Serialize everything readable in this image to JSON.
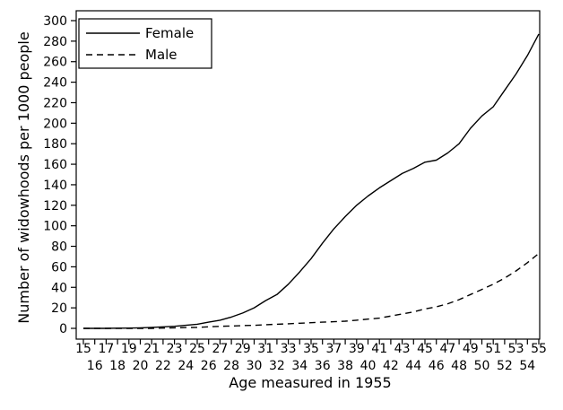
{
  "chart_data": {
    "type": "line",
    "title": "",
    "xlabel": "Age measured in 1955",
    "ylabel": "Number of widowhoods per 1000 people",
    "xlim": [
      15,
      55
    ],
    "ylim": [
      0,
      300
    ],
    "y_ticks": [
      0,
      20,
      40,
      60,
      80,
      100,
      120,
      140,
      160,
      180,
      200,
      220,
      240,
      260,
      280,
      300
    ],
    "x_ticks_top_row": [
      15,
      17,
      19,
      21,
      23,
      25,
      27,
      29,
      31,
      33,
      35,
      37,
      39,
      41,
      43,
      45,
      47,
      49,
      51,
      53,
      55
    ],
    "x_ticks_bottom_row": [
      16,
      18,
      20,
      22,
      24,
      26,
      28,
      30,
      32,
      34,
      36,
      38,
      40,
      42,
      44,
      46,
      48,
      50,
      52,
      54
    ],
    "grid": false,
    "legend_position": "top-left",
    "x": [
      15,
      16,
      17,
      18,
      19,
      20,
      21,
      22,
      23,
      24,
      25,
      26,
      27,
      28,
      29,
      30,
      31,
      32,
      33,
      34,
      35,
      36,
      37,
      38,
      39,
      40,
      41,
      42,
      43,
      44,
      45,
      46,
      47,
      48,
      49,
      50,
      51,
      52,
      53,
      54,
      55
    ],
    "series": [
      {
        "name": "Female",
        "line_style": "solid",
        "color": "#000000",
        "values": [
          0,
          0,
          0,
          0.2,
          0.3,
          0.5,
          1,
          1.5,
          2,
          3,
          4,
          6,
          8,
          11,
          15,
          20,
          27,
          33,
          43,
          55,
          68,
          83,
          97,
          109,
          120,
          129,
          137,
          144,
          151,
          156,
          162,
          164,
          171,
          180,
          195,
          207,
          216,
          232,
          248,
          266,
          287
        ]
      },
      {
        "name": "Male",
        "line_style": "dashed",
        "color": "#000000",
        "values": [
          0,
          0,
          0,
          0,
          0,
          0,
          0,
          0.3,
          0.5,
          0.8,
          1,
          1.5,
          2,
          2.3,
          2.7,
          3,
          3.5,
          4,
          4.5,
          5,
          5.5,
          6,
          6.5,
          7,
          8,
          9,
          10,
          12,
          14,
          16,
          19,
          21,
          24,
          28,
          33,
          38,
          43,
          49,
          56,
          64,
          73
        ]
      }
    ]
  }
}
